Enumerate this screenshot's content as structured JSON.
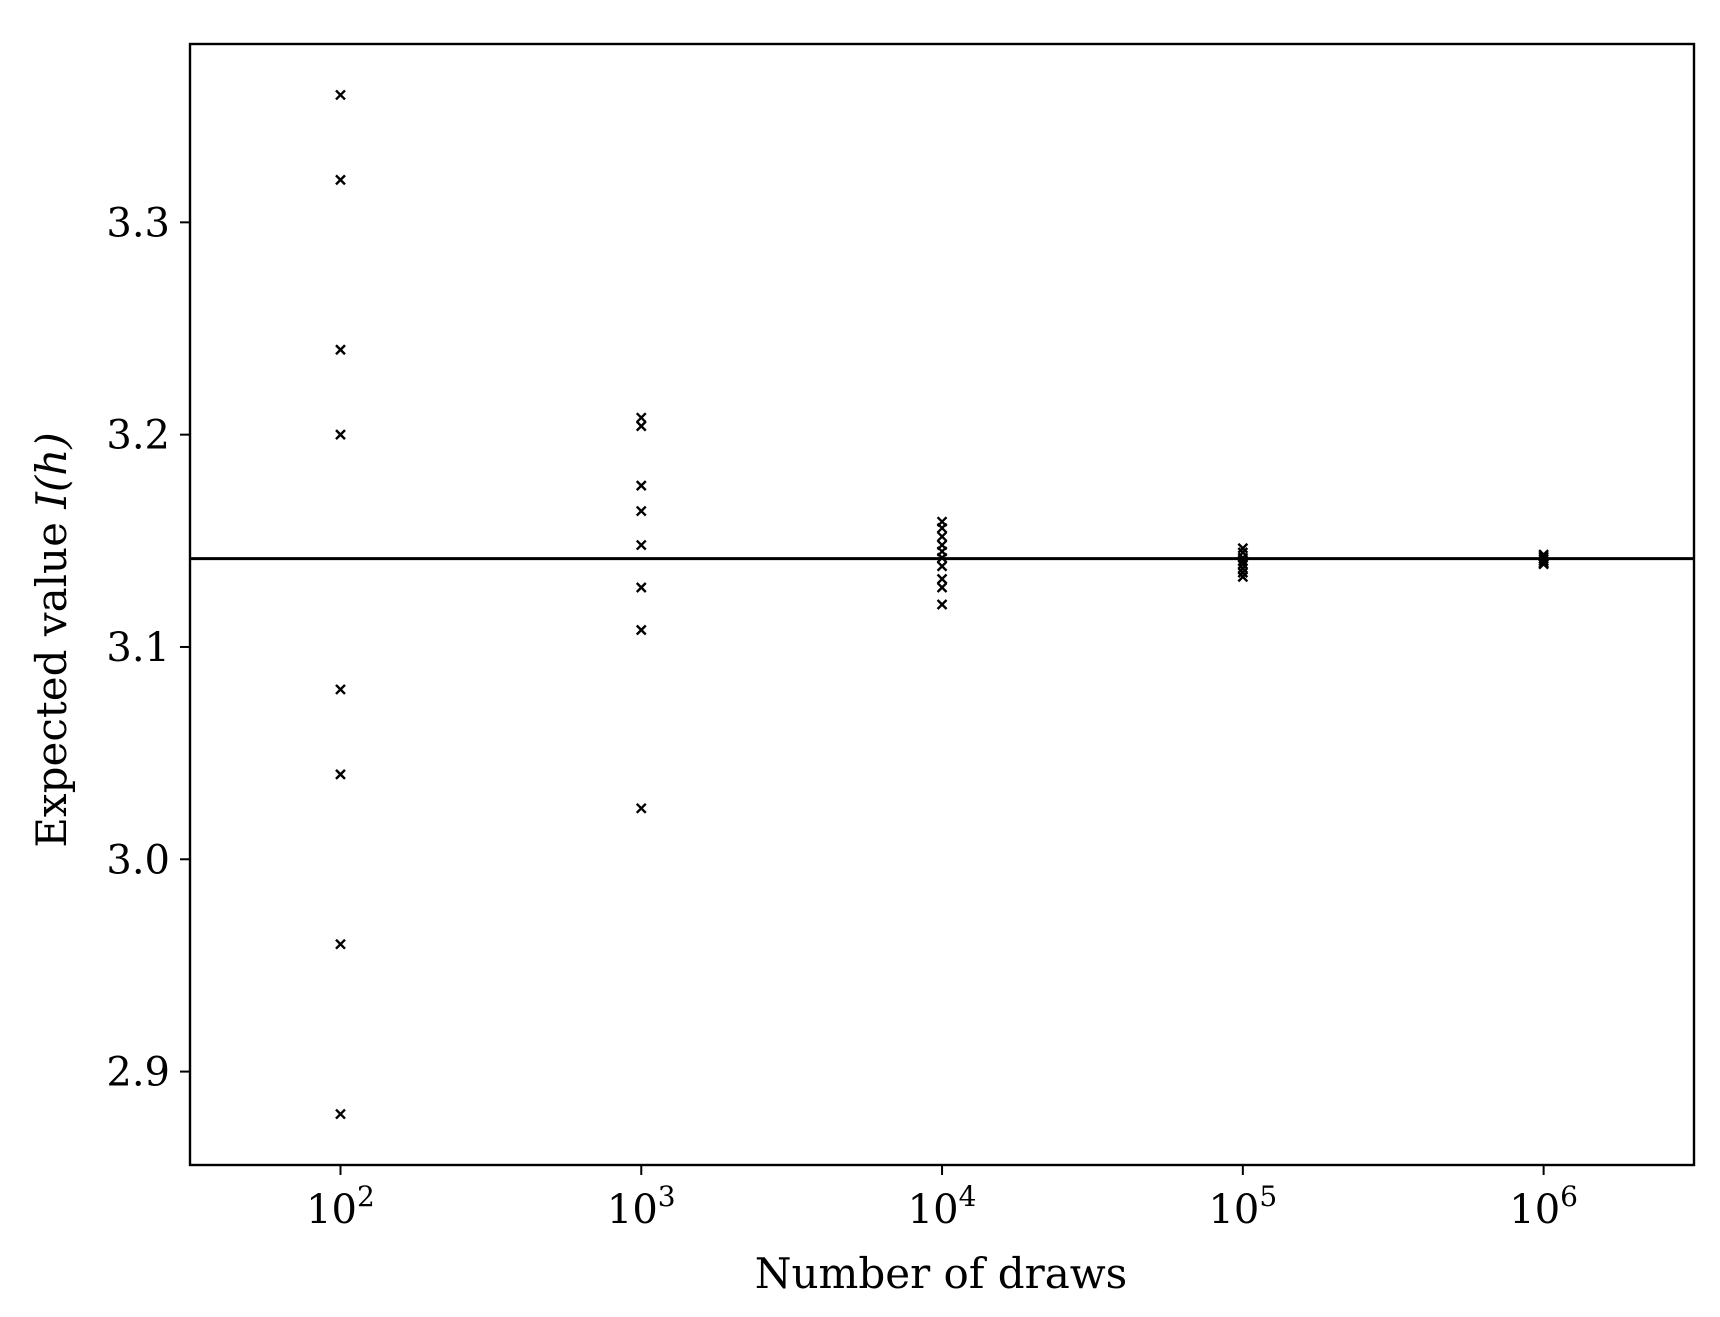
{
  "chart_data": {
    "type": "scatter",
    "title": "",
    "xlabel": "Number of draws",
    "ylabel_prefix": "Expected value ",
    "ylabel_math": "I(h)",
    "xscale": "log",
    "xlim": [
      31.6,
      3162000
    ],
    "ylim": [
      2.856,
      3.384
    ],
    "grid": false,
    "legend": "none",
    "marker": "x",
    "marker_color": "#000000",
    "x_ticks": [
      {
        "value": 100,
        "base": "10",
        "exp": "2"
      },
      {
        "value": 1000,
        "base": "10",
        "exp": "3"
      },
      {
        "value": 10000,
        "base": "10",
        "exp": "4"
      },
      {
        "value": 100000,
        "base": "10",
        "exp": "5"
      },
      {
        "value": 1000000,
        "base": "10",
        "exp": "6"
      }
    ],
    "y_ticks": [
      {
        "value": 2.9,
        "label": "2.9"
      },
      {
        "value": 3.0,
        "label": "3.0"
      },
      {
        "value": 3.1,
        "label": "3.1"
      },
      {
        "value": 3.2,
        "label": "3.2"
      },
      {
        "value": 3.3,
        "label": "3.3"
      }
    ],
    "reference_line": {
      "y": 3.1416
    },
    "series": [
      {
        "x": 100,
        "values": [
          3.36,
          3.32,
          3.24,
          3.2,
          3.08,
          3.04,
          2.96,
          2.88
        ]
      },
      {
        "x": 1000,
        "values": [
          3.208,
          3.204,
          3.176,
          3.164,
          3.148,
          3.128,
          3.108,
          3.024
        ]
      },
      {
        "x": 10000,
        "values": [
          3.159,
          3.156,
          3.152,
          3.148,
          3.145,
          3.142,
          3.138,
          3.132,
          3.128,
          3.12
        ]
      },
      {
        "x": 100000,
        "values": [
          3.1465,
          3.1445,
          3.142,
          3.1405,
          3.139,
          3.137,
          3.135,
          3.133
        ]
      },
      {
        "x": 1000000,
        "values": [
          3.1435,
          3.1425,
          3.1415,
          3.1405,
          3.1395,
          3.139
        ]
      }
    ]
  }
}
